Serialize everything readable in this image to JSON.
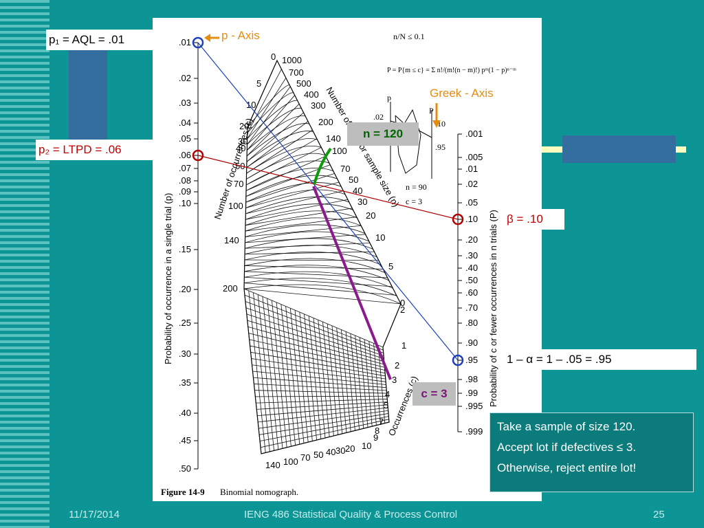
{
  "labels": {
    "p1": "p₁ = AQL = .01",
    "p2": "p₂ = LTPD = .06",
    "beta": "β = .10",
    "alpha": "1 – α = 1 – .05  = .95",
    "n_box": "n = 120",
    "c_box": "c = 3",
    "p_axis": "p - Axis",
    "greek_axis": "Greek - Axis"
  },
  "note": {
    "line1": "Take a sample of size 120.",
    "line2": "Accept lot if defectives ≤ 3.",
    "line3": "Otherwise, reject entire lot!"
  },
  "footer": {
    "date": "11/17/2014",
    "title": "IENG 486 Statistical Quality & Process Control",
    "page": "25"
  },
  "figure": {
    "caption_num": "Figure 14-9",
    "caption_text": "Binomial nomograph.",
    "left_axis_title": "Probability of occurrence in a single trial (p)",
    "right_axis_title": "Probability of c or fewer occurrences in n trials (P)",
    "curve_c_title": "Number of occurrences (c)",
    "curve_n_title": "Number of trials or sample size (n)",
    "occ_title": "Occurrences (c)",
    "condition": "n/N ≤ 0.1",
    "formula": "P = P{m ≤ c} = Σ n!/(m!(n − m)!) pᵐ(1 − p)ⁿ⁻ᵐ",
    "inset_p": "p",
    "inset_P": "P",
    "inset_n": "n = 90",
    "inset_c": "c = 3",
    "inset_02": ".02",
    "inset_10": ".10",
    "inset_95": ".95",
    "left_ticks": [
      ".01",
      ".02",
      ".03",
      ".04",
      ".05",
      ".06",
      ".07",
      ".08",
      ".09",
      ".10",
      ".15",
      ".20",
      ".25",
      ".30",
      ".35",
      ".40",
      ".45",
      ".50"
    ],
    "right_ticks": [
      ".001",
      ".005",
      ".01",
      ".02",
      ".05",
      ".10",
      ".20",
      ".30",
      ".40",
      ".50",
      ".60",
      ".70",
      ".80",
      ".90",
      ".95",
      ".98",
      ".99",
      ".995",
      ".999"
    ],
    "upper_n_labels": [
      "1000",
      "700",
      "500",
      "400",
      "300",
      "200",
      "140",
      "100",
      "70",
      "50",
      "40",
      "30",
      "20",
      "10",
      "5",
      "2",
      "0"
    ],
    "upper_c_labels": [
      "0",
      "5",
      "10",
      "20",
      "30",
      "40",
      "50",
      "70",
      "100",
      "140",
      "200"
    ],
    "lower_n_labels": [
      "140",
      "100",
      "70",
      "50",
      "40",
      "30",
      "20",
      "10"
    ],
    "lower_c_labels": [
      "1",
      "2",
      "3",
      "4",
      "5",
      "7",
      "8",
      "9"
    ]
  }
}
